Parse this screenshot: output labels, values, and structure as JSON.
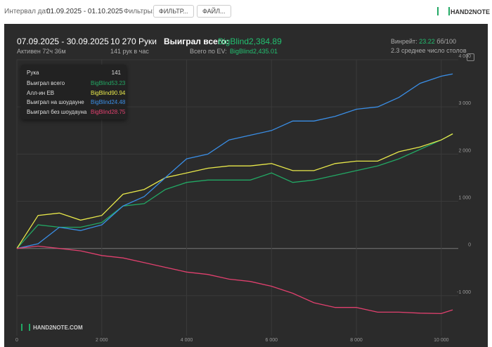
{
  "topbar": {
    "date_label": "Интервал дат:",
    "date_range": "01.09.2025 - 01.10.2025",
    "filter_label": "Фильтры:",
    "filter_button": "ФИЛЬТР...",
    "file_button": "ФАЙЛ...",
    "logo": "HAND2NOTE"
  },
  "summary": {
    "period": "07.09.2025 - 30.09.2025",
    "active": "Активен 72ч 36м",
    "hands": "10 270 Руки",
    "hands_per_hour": "141 рук в час",
    "won_label": "Выиграл всего:",
    "won_value": "BigBlind2,384.89",
    "ev_label": "Всего по EV:",
    "ev_value": "BigBlind2,435.01",
    "winrate_label": "Винрейт:",
    "winrate_value": "23.22",
    "winrate_unit": "бб/100",
    "tables": "2.3 среднее число столов"
  },
  "tooltip": {
    "hand_label": "Рука",
    "hand_value": "141",
    "values": [
      "BigBlind53.23",
      "BigBlind90.94",
      "BigBlind24.48",
      "BigBlind28.75"
    ]
  },
  "watermark": "HAND2NOTE.COM",
  "chart_data": {
    "type": "line",
    "x": [
      0,
      500,
      1000,
      1500,
      2000,
      2500,
      3000,
      3500,
      4000,
      4500,
      5000,
      5500,
      6000,
      6500,
      7000,
      7500,
      8000,
      8500,
      9000,
      9500,
      10000,
      10270
    ],
    "series": [
      {
        "name": "Выиграл всего",
        "color": "#22a864",
        "values": [
          0,
          500,
          450,
          450,
          550,
          900,
          950,
          1250,
          1400,
          1450,
          1450,
          1450,
          1600,
          1400,
          1450,
          1550,
          1650,
          1750,
          1900,
          2100,
          2300,
          2430
        ]
      },
      {
        "name": "Алл-ин EB",
        "color": "#e8e84a",
        "values": [
          0,
          700,
          750,
          600,
          700,
          1150,
          1250,
          1500,
          1600,
          1700,
          1750,
          1750,
          1800,
          1650,
          1650,
          1800,
          1850,
          1850,
          2050,
          2150,
          2300,
          2430
        ]
      },
      {
        "name": "Выиграл на шоудауне",
        "color": "#3a8ee6",
        "values": [
          0,
          100,
          450,
          380,
          500,
          900,
          1100,
          1500,
          1900,
          2000,
          2300,
          2400,
          2500,
          2700,
          2700,
          2800,
          2950,
          3000,
          3200,
          3500,
          3650,
          3700
        ]
      },
      {
        "name": "Выиграл без шоудауна",
        "color": "#e0406e",
        "values": [
          0,
          50,
          0,
          -50,
          -150,
          -200,
          -300,
          -400,
          -500,
          -550,
          -650,
          -700,
          -800,
          -950,
          -1150,
          -1250,
          -1250,
          -1350,
          -1350,
          -1370,
          -1380,
          -1300
        ]
      }
    ],
    "xlim": [
      0,
      10400
    ],
    "ylim": [
      -1850,
      4000
    ],
    "xticks": [
      0,
      {
        "value": 2000,
        "label": "2 000"
      },
      {
        "value": 4000,
        "label": "4 000"
      },
      {
        "value": 6000,
        "label": "6 000"
      },
      {
        "value": 8000,
        "label": "8 000"
      },
      {
        "value": 10000,
        "label": "10 000"
      }
    ],
    "yticks": [
      {
        "value": -1000,
        "label": "-1 000"
      },
      0,
      {
        "value": 1000,
        "label": "1 000"
      },
      {
        "value": 2000,
        "label": "2 000"
      },
      {
        "value": 3000,
        "label": "3 000"
      },
      {
        "value": 4000,
        "label": "4 000"
      }
    ],
    "grid": true
  }
}
